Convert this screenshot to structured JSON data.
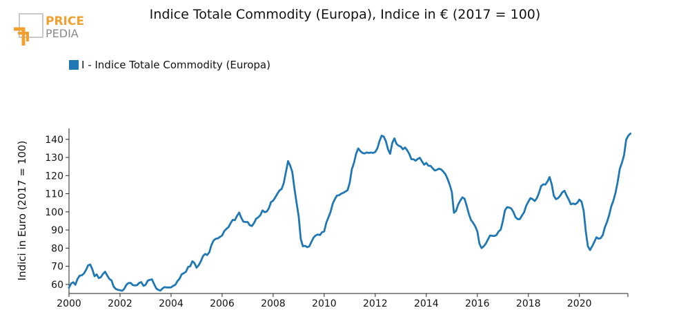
{
  "logo": {
    "line1": "PRICE",
    "line2": "PEDIA",
    "color_primary": "#f0a030",
    "color_secondary": "#8a8a8a"
  },
  "chart_data": {
    "type": "line",
    "title": "Indice Totale Commodity (Europa), Indice in € (2017 = 100)",
    "ylabel": "Indici in Euro (2017 = 100)",
    "xlabel": "",
    "legend_position": "top-left",
    "grid": false,
    "xlim": [
      2000,
      2021.9
    ],
    "ylim": [
      55,
      146
    ],
    "xticks": [
      "2000",
      "2002",
      "2004",
      "2006",
      "2008",
      "2010",
      "2012",
      "2014",
      "2016",
      "2018",
      "2020"
    ],
    "yticks": [
      "60",
      "70",
      "80",
      "90",
      "100",
      "110",
      "120",
      "130",
      "140"
    ],
    "series": [
      {
        "name": "I - Indice Totale Commodity (Europa)",
        "color": "#1f77b4",
        "x_start": 2000,
        "x_step": 0.08333,
        "values": [
          58.2,
          60.5,
          61.2,
          59.8,
          63.0,
          64.8,
          65.0,
          66.0,
          68.0,
          70.5,
          71.0,
          68.2,
          64.5,
          65.5,
          63.5,
          64.0,
          65.8,
          67.0,
          64.8,
          63.0,
          62.2,
          58.8,
          57.5,
          57.0,
          56.8,
          56.5,
          57.6,
          59.8,
          60.8,
          60.8,
          59.6,
          59.4,
          59.6,
          60.8,
          61.3,
          59.2,
          59.8,
          62.0,
          62.5,
          62.8,
          60.2,
          57.8,
          57.0,
          56.6,
          57.8,
          58.5,
          58.3,
          58.3,
          58.4,
          59.2,
          59.8,
          61.8,
          63.2,
          65.6,
          66.2,
          67.0,
          69.6,
          70.0,
          72.8,
          71.8,
          69.2,
          70.6,
          72.8,
          75.6,
          76.8,
          76.2,
          77.8,
          81.8,
          84.2,
          85.2,
          85.4,
          86.2,
          87.0,
          89.4,
          90.6,
          91.6,
          93.8,
          95.6,
          95.4,
          97.8,
          99.6,
          96.8,
          94.6,
          94.4,
          94.4,
          92.6,
          92.2,
          93.8,
          96.2,
          97.0,
          98.2,
          100.8,
          99.8,
          100.2,
          102.0,
          105.4,
          106.2,
          108.0,
          110.0,
          111.8,
          112.6,
          116.0,
          122.0,
          128.0,
          125.6,
          122.0,
          113.0,
          105.0,
          97.5,
          85.0,
          81.0,
          81.3,
          80.5,
          81.0,
          83.5,
          85.8,
          87.0,
          87.5,
          87.2,
          88.8,
          89.2,
          94.0,
          97.0,
          100.0,
          104.5,
          107.0,
          109.0,
          109.2,
          110.0,
          110.5,
          111.2,
          112.0,
          116.0,
          123.5,
          127.0,
          132.0,
          135.0,
          133.5,
          132.5,
          132.2,
          132.8,
          132.5,
          132.7,
          132.5,
          133.0,
          135.0,
          139.0,
          142.0,
          141.5,
          139.0,
          134.5,
          132.0,
          138.0,
          140.5,
          137.5,
          136.5,
          136.0,
          134.5,
          135.5,
          134.0,
          132.0,
          129.0,
          129.0,
          128.2,
          129.2,
          129.8,
          127.8,
          126.0,
          127.0,
          125.4,
          125.4,
          124.0,
          122.8,
          123.2,
          123.8,
          123.4,
          122.2,
          120.8,
          118.2,
          115.0,
          111.0,
          99.5,
          100.5,
          104.0,
          106.2,
          108.0,
          107.2,
          103.4,
          99.0,
          95.6,
          94.0,
          92.0,
          89.2,
          82.5,
          80.0,
          81.0,
          82.5,
          84.8,
          87.0,
          86.8,
          86.7,
          87.2,
          89.2,
          90.2,
          94.8,
          100.8,
          102.6,
          102.4,
          101.8,
          99.8,
          97.0,
          96.0,
          96.0,
          98.0,
          99.8,
          103.4,
          105.6,
          107.6,
          107.0,
          106.0,
          107.6,
          110.4,
          114.2,
          115.2,
          115.0,
          116.8,
          119.2,
          115.2,
          108.8,
          107.0,
          107.6,
          109.0,
          110.8,
          111.6,
          109.0,
          106.8,
          104.2,
          104.6,
          104.2,
          105.0,
          106.8,
          105.6,
          100.6,
          89.5,
          81.0,
          79.0,
          81.0,
          83.4,
          86.0,
          85.2,
          85.5,
          87.2,
          91.6,
          94.5,
          98.2,
          103.0,
          106.2,
          110.6,
          116.6,
          123.8,
          127.0,
          131.2,
          139.8,
          142.0,
          143.2
        ]
      }
    ]
  }
}
